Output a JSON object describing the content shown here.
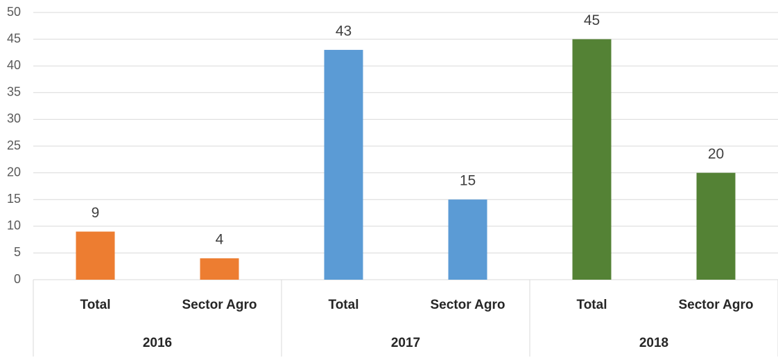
{
  "chart_data": {
    "type": "bar",
    "groups": [
      {
        "name": "2016",
        "color": "#ed7d31",
        "categories": [
          "Total",
          "Sector Agro"
        ],
        "values": [
          9,
          4
        ]
      },
      {
        "name": "2017",
        "color": "#5b9bd5",
        "categories": [
          "Total",
          "Sector Agro"
        ],
        "values": [
          43,
          15
        ]
      },
      {
        "name": "2018",
        "color": "#548235",
        "categories": [
          "Total",
          "Sector Agro"
        ],
        "values": [
          45,
          20
        ]
      }
    ],
    "ylim": [
      0,
      50
    ],
    "yticks": [
      0,
      5,
      10,
      15,
      20,
      25,
      30,
      35,
      40,
      45,
      50
    ],
    "grid": true
  }
}
